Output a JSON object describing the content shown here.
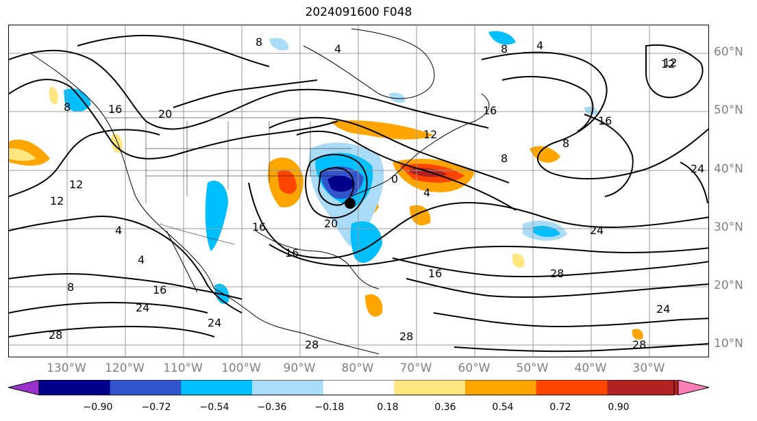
{
  "title": "2024091600 F048",
  "lon_labels": [
    "130°W",
    "120°W",
    "110°W",
    "100°W",
    "90°W",
    "80°W",
    "70°W",
    "60°W",
    "50°W",
    "40°W",
    "30°W"
  ],
  "lat_labels": [
    "60°N",
    "50°N",
    "40°N",
    "30°N",
    "20°N",
    "10°N"
  ],
  "colorbar": {
    "ticks": [
      "−0.90",
      "−0.72",
      "−0.54",
      "−0.36",
      "−0.18",
      "0.18",
      "0.36",
      "0.54",
      "0.72",
      "0.90"
    ],
    "colors": [
      "#9933cc",
      "#00008b",
      "#3355cc",
      "#00bfff",
      "#aadcf7",
      "#ffffff",
      "#ffe680",
      "#ffa500",
      "#ff4500",
      "#b22222",
      "#ff7fb4"
    ]
  },
  "contour_labels": [
    "8",
    "4",
    "4",
    "12",
    "8",
    "8",
    "16",
    "20",
    "16",
    "12",
    "8",
    "16",
    "12",
    "8",
    "0",
    "4",
    "20",
    "16",
    "16",
    "4",
    "4",
    "24",
    "12",
    "12",
    "16",
    "8",
    "16",
    "24",
    "28",
    "24",
    "24",
    "28",
    "28",
    "28",
    "24",
    "28"
  ]
}
